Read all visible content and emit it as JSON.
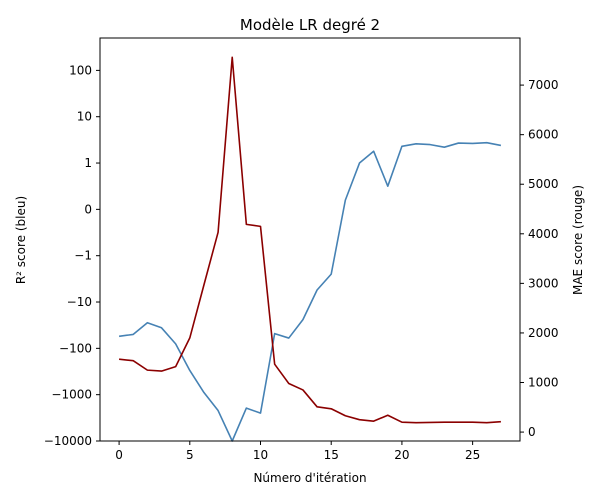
{
  "chart_data": {
    "type": "line",
    "title": "Modèle LR degré 2",
    "xlabel": "Número d'itération",
    "ylabel_left": "R² score (bleu)",
    "ylabel_right": "MAE score (rouge)",
    "grid": false,
    "x": [
      0,
      1,
      2,
      3,
      4,
      5,
      6,
      7,
      8,
      9,
      10,
      11,
      12,
      13,
      14,
      15,
      16,
      17,
      18,
      19,
      20,
      21,
      22,
      23,
      24,
      25,
      26,
      27
    ],
    "x_ticks": [
      0,
      5,
      10,
      15,
      20,
      25
    ],
    "x_tick_labels": [
      "0",
      "5",
      "10",
      "15",
      "20",
      "25"
    ],
    "xlim": [
      -1.35,
      28.35
    ],
    "left_axis": {
      "scale": "symlog",
      "linthresh": 1,
      "ylim": [
        -10000,
        500
      ],
      "ticks": [
        -10000,
        -1000,
        -100,
        -10,
        -1,
        0,
        1,
        10,
        100
      ],
      "tick_labels": [
        "−10000",
        "−1000",
        "−100",
        "−10",
        "−1",
        "0",
        "1",
        "10",
        "100"
      ]
    },
    "right_axis": {
      "scale": "linear",
      "ylim": [
        -180,
        7950
      ],
      "ticks": [
        0,
        1000,
        2000,
        3000,
        4000,
        5000,
        6000,
        7000
      ],
      "tick_labels": [
        "0",
        "1000",
        "2000",
        "3000",
        "4000",
        "5000",
        "6000",
        "7000"
      ]
    },
    "series": [
      {
        "axis": "left",
        "color": "#4682b4",
        "values": [
          -55,
          -50,
          -28,
          -36,
          -80,
          -300,
          -900,
          -2200,
          -10000,
          -1950,
          -2500,
          -48,
          -60,
          -24,
          -5.5,
          -2.5,
          0.2,
          1.0,
          1.8,
          0.5,
          2.3,
          2.6,
          2.5,
          2.2,
          2.7,
          2.65,
          2.75,
          2.4
        ]
      },
      {
        "axis": "right",
        "color": "#8b0000",
        "values": [
          1470,
          1440,
          1250,
          1230,
          1320,
          1900,
          2970,
          4030,
          7560,
          4190,
          4150,
          1370,
          980,
          850,
          510,
          470,
          330,
          250,
          220,
          340,
          200,
          190,
          195,
          200,
          200,
          200,
          190,
          210
        ]
      }
    ]
  }
}
